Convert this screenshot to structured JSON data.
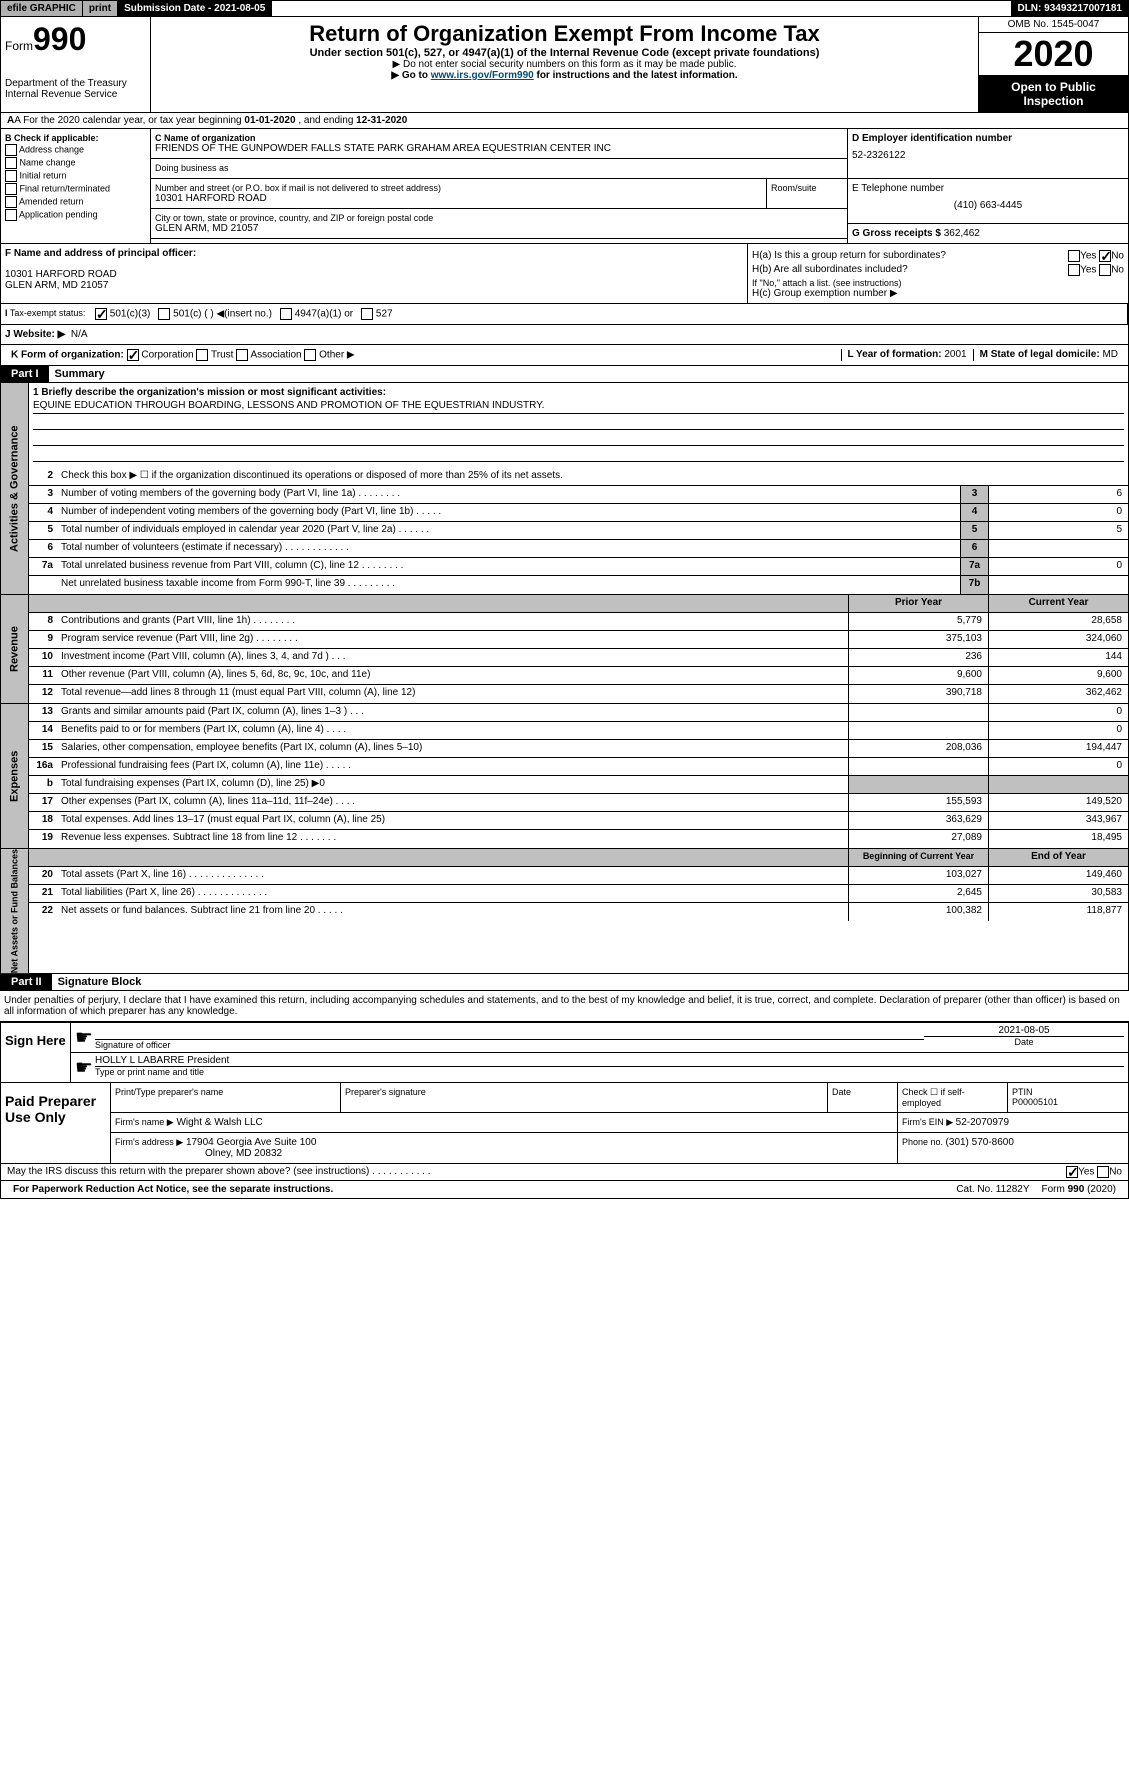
{
  "topbar": {
    "efile": "efile GRAPHIC",
    "print": "print",
    "submission": "Submission Date - 2021-08-05",
    "dln": "DLN: 93493217007181"
  },
  "header": {
    "form_prefix": "Form",
    "form_number": "990",
    "title": "Return of Organization Exempt From Income Tax",
    "subtitle1": "Under section 501(c), 527, or 4947(a)(1) of the Internal Revenue Code (except private foundations)",
    "subtitle2": "▶ Do not enter social security numbers on this form as it may be made public.",
    "subtitle3_pre": "▶ Go to ",
    "subtitle3_link": "www.irs.gov/Form990",
    "subtitle3_post": " for instructions and the latest information.",
    "dept": "Department of the Treasury\nInternal Revenue Service",
    "omb": "OMB No. 1545-0047",
    "year": "2020",
    "inspection": "Open to Public Inspection"
  },
  "section_a": {
    "text_pre": "A For the 2020 calendar year, or tax year beginning ",
    "begin": "01-01-2020",
    "text_mid": " , and ending ",
    "end": "12-31-2020"
  },
  "section_b": {
    "label": "B Check if applicable:",
    "items": [
      "Address change",
      "Name change",
      "Initial return",
      "Final return/terminated",
      "Amended return",
      "Application pending"
    ]
  },
  "section_c": {
    "name_label": "C Name of organization",
    "name": "FRIENDS OF THE GUNPOWDER FALLS STATE PARK GRAHAM AREA EQUESTRIAN CENTER INC",
    "dba_label": "Doing business as",
    "addr_label": "Number and street (or P.O. box if mail is not delivered to street address)",
    "addr": "10301 HARFORD ROAD",
    "suite_label": "Room/suite",
    "city_label": "City or town, state or province, country, and ZIP or foreign postal code",
    "city": "GLEN ARM, MD  21057"
  },
  "section_d": {
    "ein_label": "D Employer identification number",
    "ein": "52-2326122",
    "tel_label": "E Telephone number",
    "tel": "(410) 663-4445",
    "gross_label": "G Gross receipts $ ",
    "gross": "362,462"
  },
  "section_f": {
    "label": "F Name and address of principal officer:",
    "addr1": "10301 HARFORD ROAD",
    "addr2": "GLEN ARM, MD  21057"
  },
  "section_h": {
    "ha_label": "H(a)  Is this a group return for subordinates?",
    "hb_label": "H(b)  Are all subordinates included?",
    "hb_note": "If \"No,\" attach a list. (see instructions)",
    "hc_label": "H(c)  Group exemption number ▶"
  },
  "section_i": {
    "label": "Tax-exempt status:",
    "opt1": "501(c)(3)",
    "opt2": "501(c) (  ) ◀(insert no.)",
    "opt3": "4947(a)(1) or",
    "opt4": "527"
  },
  "section_j": {
    "label": "J  Website: ▶",
    "value": "N/A"
  },
  "section_k": {
    "label": "K Form of organization:",
    "opts": [
      "Corporation",
      "Trust",
      "Association",
      "Other ▶"
    ]
  },
  "section_l": {
    "label": "L Year of formation: ",
    "value": "2001"
  },
  "section_m": {
    "label": "M State of legal domicile: ",
    "value": "MD"
  },
  "part1": {
    "part": "Part I",
    "title": "Summary",
    "line1_label": "1  Briefly describe the organization's mission or most significant activities:",
    "line1_value": "EQUINE EDUCATION THROUGH BOARDING, LESSONS AND PROMOTION OF THE EQUESTRIAN INDUSTRY.",
    "line2": "Check this box ▶ ☐  if the organization discontinued its operations or disposed of more than 25% of its net assets.",
    "rows_gov": [
      {
        "n": "3",
        "t": "Number of voting members of the governing body (Part VI, line 1a)  .   .   .   .   .   .   .   .",
        "b": "3",
        "v": "6"
      },
      {
        "n": "4",
        "t": "Number of independent voting members of the governing body (Part VI, line 1b)  .   .   .   .   .",
        "b": "4",
        "v": "0"
      },
      {
        "n": "5",
        "t": "Total number of individuals employed in calendar year 2020 (Part V, line 2a)  .   .   .   .   .   .",
        "b": "5",
        "v": "5"
      },
      {
        "n": "6",
        "t": "Total number of volunteers (estimate if necessary)  .   .   .   .   .   .   .   .   .   .   .   .",
        "b": "6",
        "v": ""
      },
      {
        "n": "7a",
        "t": "Total unrelated business revenue from Part VIII, column (C), line 12  .   .   .   .   .   .   .   .",
        "b": "7a",
        "v": "0"
      },
      {
        "n": "",
        "t": "Net unrelated business taxable income from Form 990-T, line 39  .   .   .   .   .   .   .   .   .",
        "b": "7b",
        "v": ""
      }
    ],
    "col_prior": "Prior Year",
    "col_current": "Current Year",
    "rows_rev": [
      {
        "n": "8",
        "t": "Contributions and grants (Part VIII, line 1h)  .   .   .   .   .   .   .   .",
        "p": "5,779",
        "c": "28,658"
      },
      {
        "n": "9",
        "t": "Program service revenue (Part VIII, line 2g)  .   .   .   .   .   .   .   .",
        "p": "375,103",
        "c": "324,060"
      },
      {
        "n": "10",
        "t": "Investment income (Part VIII, column (A), lines 3, 4, and 7d )  .   .   .",
        "p": "236",
        "c": "144"
      },
      {
        "n": "11",
        "t": "Other revenue (Part VIII, column (A), lines 5, 6d, 8c, 9c, 10c, and 11e)",
        "p": "9,600",
        "c": "9,600"
      },
      {
        "n": "12",
        "t": "Total revenue—add lines 8 through 11 (must equal Part VIII, column (A), line 12)",
        "p": "390,718",
        "c": "362,462"
      }
    ],
    "rows_exp": [
      {
        "n": "13",
        "t": "Grants and similar amounts paid (Part IX, column (A), lines 1–3 )  .   .   .",
        "p": "",
        "c": "0"
      },
      {
        "n": "14",
        "t": "Benefits paid to or for members (Part IX, column (A), line 4)  .   .   .   .",
        "p": "",
        "c": "0"
      },
      {
        "n": "15",
        "t": "Salaries, other compensation, employee benefits (Part IX, column (A), lines 5–10)",
        "p": "208,036",
        "c": "194,447"
      },
      {
        "n": "16a",
        "t": "Professional fundraising fees (Part IX, column (A), line 11e)  .   .   .   .   .",
        "p": "",
        "c": "0"
      },
      {
        "n": "b",
        "t": "Total fundraising expenses (Part IX, column (D), line 25) ▶0",
        "p": "shaded",
        "c": "shaded"
      },
      {
        "n": "17",
        "t": "Other expenses (Part IX, column (A), lines 11a–11d, 11f–24e)  .   .   .   .",
        "p": "155,593",
        "c": "149,520"
      },
      {
        "n": "18",
        "t": "Total expenses. Add lines 13–17 (must equal Part IX, column (A), line 25)",
        "p": "363,629",
        "c": "343,967"
      },
      {
        "n": "19",
        "t": "Revenue less expenses. Subtract line 18 from line 12  .   .   .   .   .   .   .",
        "p": "27,089",
        "c": "18,495"
      }
    ],
    "col_begin": "Beginning of Current Year",
    "col_end": "End of Year",
    "rows_net": [
      {
        "n": "20",
        "t": "Total assets (Part X, line 16)  .   .   .   .   .   .   .   .   .   .   .   .   .   .",
        "p": "103,027",
        "c": "149,460"
      },
      {
        "n": "21",
        "t": "Total liabilities (Part X, line 26)  .   .   .   .   .   .   .   .   .   .   .   .   .",
        "p": "2,645",
        "c": "30,583"
      },
      {
        "n": "22",
        "t": "Net assets or fund balances. Subtract line 21 from line 20  .   .   .   .   .",
        "p": "100,382",
        "c": "118,877"
      }
    ],
    "side_gov": "Activities & Governance",
    "side_rev": "Revenue",
    "side_exp": "Expenses",
    "side_net": "Net Assets or Fund Balances"
  },
  "part2": {
    "part": "Part II",
    "title": "Signature Block",
    "perjury": "Under penalties of perjury, I declare that I have examined this return, including accompanying schedules and statements, and to the best of my knowledge and belief, it is true, correct, and complete. Declaration of preparer (other than officer) is based on all information of which preparer has any knowledge.",
    "sign_here": "Sign Here",
    "sig_officer": "Signature of officer",
    "sig_date": "2021-08-05",
    "date_label": "Date",
    "officer_name": "HOLLY L LABARRE  President",
    "type_name": "Type or print name and title",
    "paid_prep": "Paid Preparer Use Only",
    "prep_name_label": "Print/Type preparer's name",
    "prep_sig_label": "Preparer's signature",
    "prep_date_label": "Date",
    "check_self": "Check ☐ if self-employed",
    "ptin_label": "PTIN",
    "ptin": "P00005101",
    "firm_name_label": "Firm's name    ▶",
    "firm_name": "Wight & Walsh LLC",
    "firm_ein_label": "Firm's EIN ▶ ",
    "firm_ein": "52-2070979",
    "firm_addr_label": "Firm's address ▶",
    "firm_addr1": "17904 Georgia Ave Suite 100",
    "firm_addr2": "Olney, MD  20832",
    "phone_label": "Phone no. ",
    "phone": "(301) 570-8600",
    "discuss": "May the IRS discuss this return with the preparer shown above? (see instructions)  .   .   .   .   .   .   .   .   .   .   ."
  },
  "footer": {
    "paperwork": "For Paperwork Reduction Act Notice, see the separate instructions.",
    "cat": "Cat. No. 11282Y",
    "form": "Form 990 (2020)"
  }
}
